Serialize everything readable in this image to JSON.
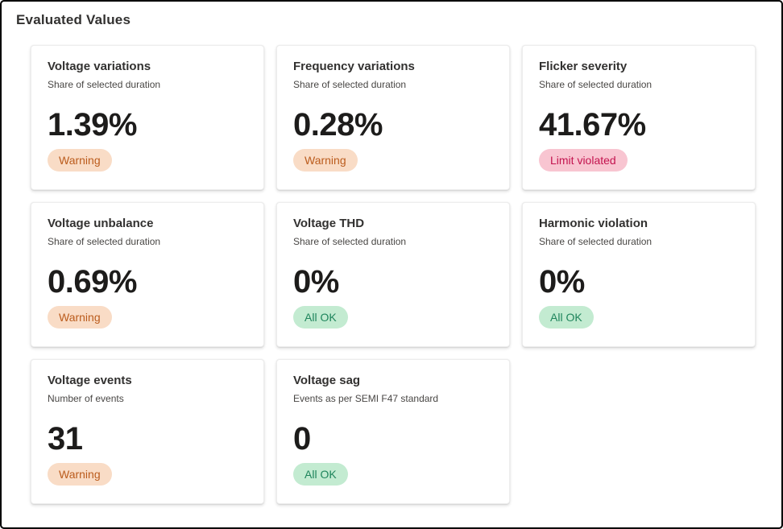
{
  "page": {
    "title": "Evaluated Values"
  },
  "colors": {
    "warning_bg": "#f9dcc6",
    "warning_text": "#bb5c1d",
    "violated_bg": "#f8c5d1",
    "violated_text": "#c3134e",
    "ok_bg": "#c3ebd1",
    "ok_text": "#1f855c"
  },
  "cards": [
    {
      "title": "Voltage variations",
      "subtitle": "Share of selected duration",
      "value": "1.39%",
      "status": "Warning",
      "status_type": "warning"
    },
    {
      "title": "Frequency variations",
      "subtitle": "Share of selected duration",
      "value": "0.28%",
      "status": "Warning",
      "status_type": "warning"
    },
    {
      "title": "Flicker severity",
      "subtitle": "Share of selected duration",
      "value": "41.67%",
      "status": "Limit violated",
      "status_type": "violated"
    },
    {
      "title": "Voltage unbalance",
      "subtitle": "Share of selected duration",
      "value": "0.69%",
      "status": "Warning",
      "status_type": "warning"
    },
    {
      "title": "Voltage THD",
      "subtitle": "Share of selected duration",
      "value": "0%",
      "status": "All OK",
      "status_type": "ok"
    },
    {
      "title": "Harmonic violation",
      "subtitle": "Share of selected duration",
      "value": "0%",
      "status": "All OK",
      "status_type": "ok"
    },
    {
      "title": "Voltage events",
      "subtitle": "Number of events",
      "value": "31",
      "status": "Warning",
      "status_type": "warning"
    },
    {
      "title": "Voltage sag",
      "subtitle": "Events as per SEMI F47 standard",
      "value": "0",
      "status": "All OK",
      "status_type": "ok"
    }
  ]
}
